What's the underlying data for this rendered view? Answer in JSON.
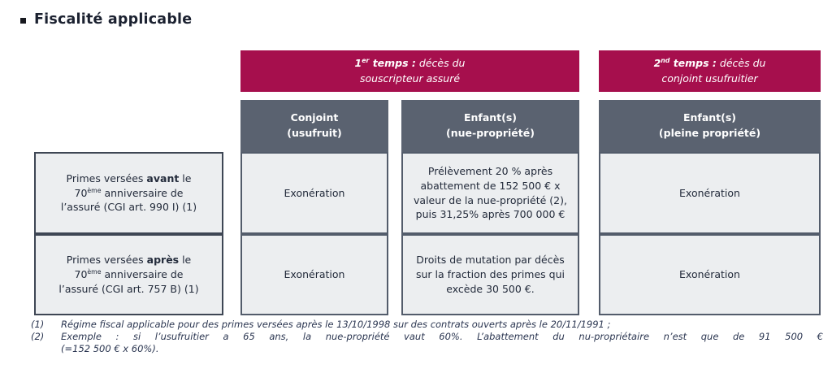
{
  "page_title": "Fiscalité applicable",
  "table": {
    "band1": {
      "num": "1",
      "sup": "er",
      "bold_rest": " temps :",
      "line1_rest": " décès du",
      "line2": "souscripteur assuré"
    },
    "band2": {
      "num": "2",
      "sup": "nd",
      "bold_rest": " temps :",
      "line1_rest": " décès du",
      "line2": "conjoint usufruitier"
    },
    "col_headers": [
      {
        "line1": "Conjoint",
        "line2": "(usufruit)"
      },
      {
        "line1": "Enfant(s)",
        "line2": "(nue-propriété)"
      },
      {
        "line1": "Enfant(s)",
        "line2": "(pleine propriété)"
      }
    ],
    "row_headers": [
      {
        "pre": "Primes versées ",
        "bold": "avant",
        "mid": " le 70",
        "sup": "ème",
        "post": " anniversaire de l’assuré (CGI art. 990 I) (1)"
      },
      {
        "pre": "Primes versées ",
        "bold": "après",
        "mid": " le 70",
        "sup": "ème",
        "post": " anniversaire de l’assuré (CGI art. 757 B) (1)"
      }
    ],
    "cells": {
      "r1c1": "Exonération",
      "r1c2": "Prélèvement 20 % après abattement de 152 500 € x valeur de la nue-propriété (2), puis 31,25% après 700 000 €",
      "r1c3": "Exonération",
      "r2c1": "Exonération",
      "r2c2": "Droits de mutation par décès sur la fraction des primes qui excède 30 500 €.",
      "r2c3": "Exonération"
    }
  },
  "footnotes": [
    {
      "num": "(1)",
      "lines": [
        "Régime fiscal applicable pour des primes versées après le 13/10/1998 sur des contrats ouverts après le 20/11/1991 ;"
      ]
    },
    {
      "num": "(2)",
      "lines": [
        "Exemple : si l’usufruitier a 65 ans, la nue-propriété vaut 60%. L’abattement du nu-propriétaire n’est que de 91 500 €",
        "(=152 500 € x 60%)."
      ]
    }
  ],
  "colors": {
    "band_bg": "#a60f4d",
    "header_bg": "#5a6270",
    "cell_bg": "#eceef0",
    "cell_border": "#535c6b",
    "rowhdr_border": "#3e4654",
    "cell_text": "#232b3b",
    "title_color": "#1b2130",
    "footnote_color": "#2a3550"
  }
}
